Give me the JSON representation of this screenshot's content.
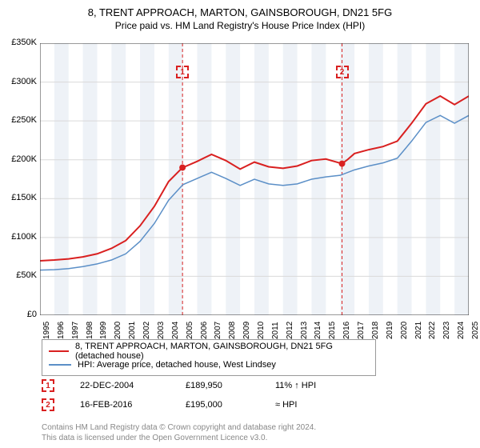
{
  "title": "8, TRENT APPROACH, MARTON, GAINSBOROUGH, DN21 5FG",
  "subtitle": "Price paid vs. HM Land Registry's House Price Index (HPI)",
  "chart": {
    "type": "line",
    "background_color": "#ffffff",
    "plot_bg_color": "#ffffff",
    "band_color": "#eef2f7",
    "grid_color": "#d9d9d9",
    "axis_color": "#333333",
    "font_size_ticks": 11,
    "ylim": [
      0,
      350000
    ],
    "ytick_step": 50000,
    "ytick_labels": [
      "£0",
      "£50K",
      "£100K",
      "£150K",
      "£200K",
      "£250K",
      "£300K",
      "£350K"
    ],
    "xlim": [
      1995,
      2025
    ],
    "xticks": [
      1995,
      1996,
      1997,
      1998,
      1999,
      2000,
      2001,
      2002,
      2003,
      2004,
      2005,
      2006,
      2007,
      2008,
      2009,
      2010,
      2011,
      2012,
      2013,
      2014,
      2015,
      2016,
      2017,
      2018,
      2019,
      2020,
      2021,
      2022,
      2023,
      2024,
      2025
    ],
    "series": [
      {
        "name": "price_paid",
        "label": "8, TRENT APPROACH, MARTON, GAINSBOROUGH, DN21 5FG (detached house)",
        "color": "#d92020",
        "line_width": 2,
        "data": [
          [
            1995,
            70000
          ],
          [
            1996,
            71000
          ],
          [
            1997,
            72500
          ],
          [
            1998,
            75000
          ],
          [
            1999,
            79000
          ],
          [
            2000,
            86000
          ],
          [
            2001,
            96000
          ],
          [
            2002,
            115000
          ],
          [
            2003,
            140000
          ],
          [
            2004,
            172000
          ],
          [
            2004.97,
            189950
          ],
          [
            2005,
            190000
          ],
          [
            2006,
            198000
          ],
          [
            2007,
            207000
          ],
          [
            2008,
            199000
          ],
          [
            2009,
            188000
          ],
          [
            2010,
            197000
          ],
          [
            2011,
            191000
          ],
          [
            2012,
            189000
          ],
          [
            2013,
            192000
          ],
          [
            2014,
            199000
          ],
          [
            2015,
            201000
          ],
          [
            2016.13,
            195000
          ],
          [
            2016.5,
            200000
          ],
          [
            2017,
            208000
          ],
          [
            2018,
            213000
          ],
          [
            2019,
            217000
          ],
          [
            2020,
            224000
          ],
          [
            2021,
            247000
          ],
          [
            2022,
            272000
          ],
          [
            2023,
            282000
          ],
          [
            2024,
            271000
          ],
          [
            2025,
            282000
          ]
        ]
      },
      {
        "name": "hpi",
        "label": "HPI: Average price, detached house, West Lindsey",
        "color": "#5b8fc7",
        "line_width": 1.5,
        "data": [
          [
            1995,
            58000
          ],
          [
            1996,
            58500
          ],
          [
            1997,
            60000
          ],
          [
            1998,
            62500
          ],
          [
            1999,
            66000
          ],
          [
            2000,
            71000
          ],
          [
            2001,
            79000
          ],
          [
            2002,
            95000
          ],
          [
            2003,
            118000
          ],
          [
            2004,
            148000
          ],
          [
            2005,
            168000
          ],
          [
            2006,
            176000
          ],
          [
            2007,
            184000
          ],
          [
            2008,
            176000
          ],
          [
            2009,
            167000
          ],
          [
            2010,
            175000
          ],
          [
            2011,
            169000
          ],
          [
            2012,
            167000
          ],
          [
            2013,
            169000
          ],
          [
            2014,
            175000
          ],
          [
            2015,
            178000
          ],
          [
            2016,
            180000
          ],
          [
            2017,
            187000
          ],
          [
            2018,
            192000
          ],
          [
            2019,
            196000
          ],
          [
            2020,
            202000
          ],
          [
            2021,
            224000
          ],
          [
            2022,
            248000
          ],
          [
            2023,
            257000
          ],
          [
            2024,
            247000
          ],
          [
            2025,
            257000
          ]
        ]
      }
    ],
    "sale_markers": [
      {
        "id": "1",
        "date_val": 2004.97,
        "price": 189950,
        "color": "#d92020",
        "badge_top": 100
      },
      {
        "id": "2",
        "date_val": 2016.13,
        "price": 195000,
        "color": "#d92020",
        "badge_top": 100
      }
    ]
  },
  "legend": {
    "series1_label": "8, TRENT APPROACH, MARTON, GAINSBOROUGH, DN21 5FG (detached house)",
    "series1_color": "#d92020",
    "series2_label": "HPI: Average price, detached house, West Lindsey",
    "series2_color": "#5b8fc7"
  },
  "sales": [
    {
      "badge": "1",
      "badge_color": "#d92020",
      "date": "22-DEC-2004",
      "price": "£189,950",
      "pct": "11% ↑ HPI"
    },
    {
      "badge": "2",
      "badge_color": "#d92020",
      "date": "16-FEB-2016",
      "price": "£195,000",
      "pct": "≈ HPI"
    }
  ],
  "footer": {
    "line1": "Contains HM Land Registry data © Crown copyright and database right 2024.",
    "line2": "This data is licensed under the Open Government Licence v3.0."
  }
}
